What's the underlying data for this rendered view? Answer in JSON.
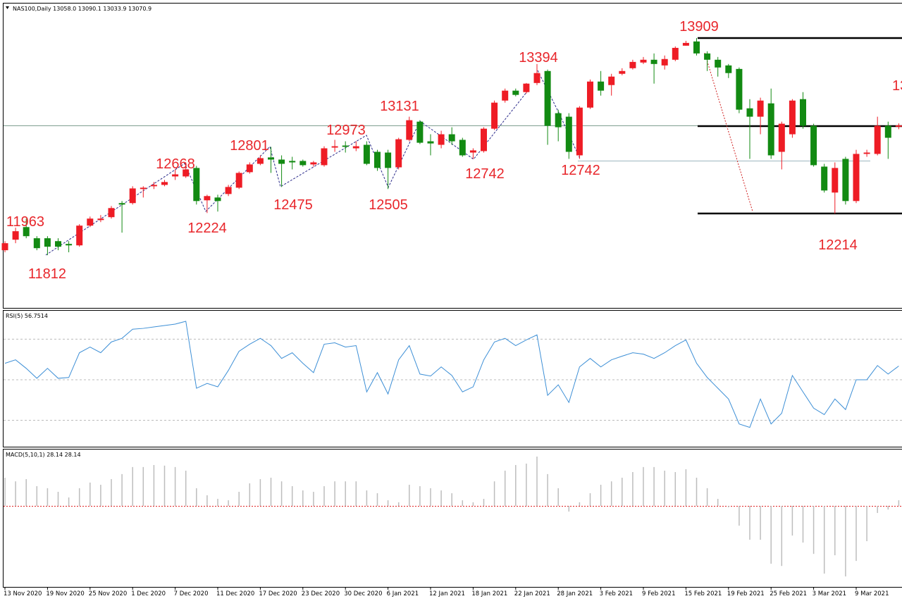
{
  "chart_data": [
    {
      "type": "candlestick",
      "title": "NAS100,Daily  13058.0 13090.1 13033.9 13070.9",
      "up_color": "#ee1c25",
      "down_color": "#128a12",
      "annotations": [
        11963,
        11812,
        12668,
        12224,
        12801,
        12475,
        12973,
        12505,
        13131,
        12742,
        13394,
        12742,
        13909,
        12214,
        "13"
      ],
      "categories": [
        "13 Nov 2020",
        null,
        null,
        null,
        "19 Nov 2020",
        null,
        null,
        null,
        "25 Nov 2020",
        null,
        null,
        null,
        "1 Dec 2020",
        null,
        null,
        null,
        "7 Dec 2020",
        null,
        null,
        null,
        "11 Dec 2020",
        null,
        null,
        null,
        "17 Dec 2020",
        null,
        null,
        null,
        "23 Dec 2020",
        null,
        null,
        null,
        "30 Dec 2020",
        null,
        null,
        null,
        "6 Jan 2021",
        null,
        null,
        null,
        "12 Jan 2021",
        null,
        null,
        null,
        "18 Jan 2021",
        null,
        null,
        null,
        "22 Jan 2021",
        null,
        null,
        null,
        "28 Jan 2021",
        null,
        null,
        null,
        "3 Feb 2021",
        null,
        null,
        null,
        "9 Feb 2021",
        null,
        null,
        null,
        "15 Feb 2021",
        null,
        null,
        null,
        "19 Feb 2021",
        null,
        null,
        null,
        "25 Feb 2021",
        null,
        null,
        null,
        "3 Mar 2021",
        null,
        null,
        null,
        "9 Mar 2021",
        null,
        null,
        null,
        null
      ],
      "ylim": [
        11305,
        14250
      ],
      "ohlc": [
        [
          11863,
          11951,
          11843,
          11931
        ],
        [
          11965,
          12081,
          11931,
          12047
        ],
        [
          12087,
          12169,
          11979,
          11999
        ],
        [
          11979,
          11999,
          11863,
          11883
        ],
        [
          11979,
          11999,
          11815,
          11897
        ],
        [
          11951,
          11979,
          11863,
          11897
        ],
        [
          11924,
          11951,
          11843,
          11910
        ],
        [
          11910,
          12115,
          11897,
          12101
        ],
        [
          12101,
          12189,
          12087,
          12169
        ],
        [
          12155,
          12203,
          12135,
          12169
        ],
        [
          12183,
          12291,
          12169,
          12271
        ],
        [
          12319,
          12339,
          12033,
          12305
        ],
        [
          12319,
          12482,
          12305,
          12461
        ],
        [
          12455,
          12482,
          12373,
          12468
        ],
        [
          12482,
          12523,
          12455,
          12495
        ],
        [
          12495,
          12543,
          12482,
          12523
        ],
        [
          12577,
          12645,
          12543,
          12597
        ],
        [
          12577,
          12713,
          12563,
          12645
        ],
        [
          12659,
          12679,
          12305,
          12339
        ],
        [
          12346,
          12400,
          12223,
          12387
        ],
        [
          12373,
          12400,
          12237,
          12339
        ],
        [
          12407,
          12495,
          12387,
          12475
        ],
        [
          12468,
          12625,
          12455,
          12611
        ],
        [
          12618,
          12713,
          12604,
          12693
        ],
        [
          12699,
          12781,
          12686,
          12754
        ],
        [
          12761,
          12863,
          12611,
          12740
        ],
        [
          12740,
          12781,
          12475,
          12699
        ],
        [
          12727,
          12767,
          12645,
          12713
        ],
        [
          12727,
          12740,
          12672,
          12686
        ],
        [
          12693,
          12727,
          12672,
          12713
        ],
        [
          12686,
          12869,
          12672,
          12849
        ],
        [
          12856,
          12931,
          12815,
          12869
        ],
        [
          12876,
          12917,
          12808,
          12863
        ],
        [
          12849,
          12917,
          12822,
          12869
        ],
        [
          12883,
          12917,
          12686,
          12699
        ],
        [
          12815,
          12835,
          12631,
          12659
        ],
        [
          12808,
          12835,
          12455,
          12659
        ],
        [
          12665,
          12951,
          12645,
          12937
        ],
        [
          12931,
          13155,
          12917,
          13121
        ],
        [
          13107,
          13121,
          12890,
          12903
        ],
        [
          12917,
          12985,
          12781,
          12896
        ],
        [
          12883,
          13019,
          12849,
          12985
        ],
        [
          12985,
          13053,
          12883,
          12917
        ],
        [
          12931,
          12951,
          12767,
          12781
        ],
        [
          12808,
          12849,
          12747,
          12829
        ],
        [
          12822,
          13053,
          12808,
          13039
        ],
        [
          13039,
          13311,
          13026,
          13291
        ],
        [
          13311,
          13427,
          13291,
          13407
        ],
        [
          13407,
          13427,
          13352,
          13366
        ],
        [
          13393,
          13481,
          13379,
          13475
        ],
        [
          13481,
          13665,
          13461,
          13577
        ],
        [
          13597,
          13611,
          12883,
          13067
        ],
        [
          13189,
          13223,
          12917,
          13053
        ],
        [
          13155,
          13189,
          12747,
          12815
        ],
        [
          12781,
          13257,
          12747,
          13243
        ],
        [
          13243,
          13515,
          13230,
          13495
        ],
        [
          13495,
          13597,
          13359,
          13407
        ],
        [
          13461,
          13570,
          13359,
          13543
        ],
        [
          13570,
          13624,
          13556,
          13597
        ],
        [
          13624,
          13706,
          13611,
          13685
        ],
        [
          13679,
          13733,
          13665,
          13706
        ],
        [
          13706,
          13767,
          13475,
          13665
        ],
        [
          13651,
          13747,
          13611,
          13713
        ],
        [
          13706,
          13835,
          13692,
          13821
        ],
        [
          13842,
          13889,
          13842,
          13869
        ],
        [
          13883,
          13917,
          13747,
          13767
        ],
        [
          13767,
          13788,
          13597,
          13706
        ],
        [
          13706,
          13733,
          13543,
          13631
        ],
        [
          13651,
          13665,
          13529,
          13577
        ],
        [
          13617,
          13631,
          13189,
          13223
        ],
        [
          13236,
          13325,
          12747,
          13155
        ],
        [
          13155,
          13339,
          12985,
          13311
        ],
        [
          13284,
          13427,
          12747,
          12781
        ],
        [
          12815,
          13107,
          12645,
          13087
        ],
        [
          12985,
          13325,
          12951,
          13311
        ],
        [
          13325,
          13393,
          13039,
          13067
        ],
        [
          13067,
          13087,
          12672,
          12686
        ],
        [
          12672,
          12699,
          12421,
          12441
        ],
        [
          12421,
          12713,
          12217,
          12659
        ],
        [
          12747,
          12767,
          12305,
          12339
        ],
        [
          12339,
          12835,
          12319,
          12795
        ],
        [
          12795,
          12835,
          12767,
          12808
        ],
        [
          12795,
          13155,
          12781,
          13067
        ],
        [
          13067,
          13107,
          12747,
          12951
        ],
        [
          13058.0,
          13090.1,
          13033.9,
          13070.9
        ]
      ]
    },
    {
      "type": "line",
      "title": "RSI(5) 56.7514",
      "color": "#3d8fd6",
      "ylim": [
        17,
        84
      ],
      "levels": [
        30,
        50,
        70
      ],
      "values": [
        58.1,
        59.8,
        55.6,
        50.7,
        55.6,
        50.7,
        51.1,
        63.3,
        66.1,
        63.3,
        68.6,
        70.4,
        74.9,
        75.3,
        76.0,
        76.7,
        77.4,
        78.8,
        45.8,
        48.2,
        46.5,
        54.6,
        64.0,
        67.5,
        70.4,
        66.8,
        60.5,
        63.3,
        58.1,
        53.5,
        67.5,
        68.2,
        66.1,
        66.8,
        44.0,
        53.5,
        43.0,
        59.8,
        66.8,
        52.8,
        51.8,
        56.3,
        52.1,
        44.0,
        46.5,
        59.8,
        68.6,
        70.4,
        66.8,
        69.6,
        72.1,
        42.3,
        47.5,
        38.8,
        56.3,
        60.5,
        56.3,
        59.8,
        61.6,
        63.3,
        62.6,
        60.5,
        63.3,
        66.8,
        69.6,
        58.1,
        51.1,
        45.8,
        40.5,
        28.2,
        26.5,
        40.5,
        28.2,
        33.5,
        52.1,
        44.0,
        36.0,
        32.8,
        40.5,
        35.3,
        50.0,
        50.0,
        57.0,
        52.8,
        56.7514
      ]
    },
    {
      "type": "bar",
      "title": "MACD(5,10,1) 28.14 28.14",
      "color": "#bdbdbd",
      "ylim": [
        -402,
        280
      ],
      "values": [
        140,
        122,
        133,
        98,
        88,
        70,
        42,
        88,
        116,
        105,
        133,
        158,
        193,
        193,
        203,
        200,
        193,
        175,
        88,
        53,
        35,
        28,
        70,
        112,
        133,
        140,
        122,
        98,
        77,
        70,
        98,
        122,
        122,
        122,
        77,
        63,
        28,
        18,
        105,
        98,
        88,
        77,
        63,
        28,
        18,
        35,
        122,
        175,
        203,
        210,
        245,
        158,
        88,
        -28,
        18,
        63,
        105,
        122,
        140,
        168,
        193,
        193,
        175,
        168,
        182,
        140,
        88,
        35,
        -7,
        -98,
        -168,
        -168,
        -287,
        -298,
        -147,
        -182,
        -238,
        -336,
        -245,
        -350,
        -273,
        -175,
        -35,
        -18,
        28.14
      ]
    }
  ]
}
